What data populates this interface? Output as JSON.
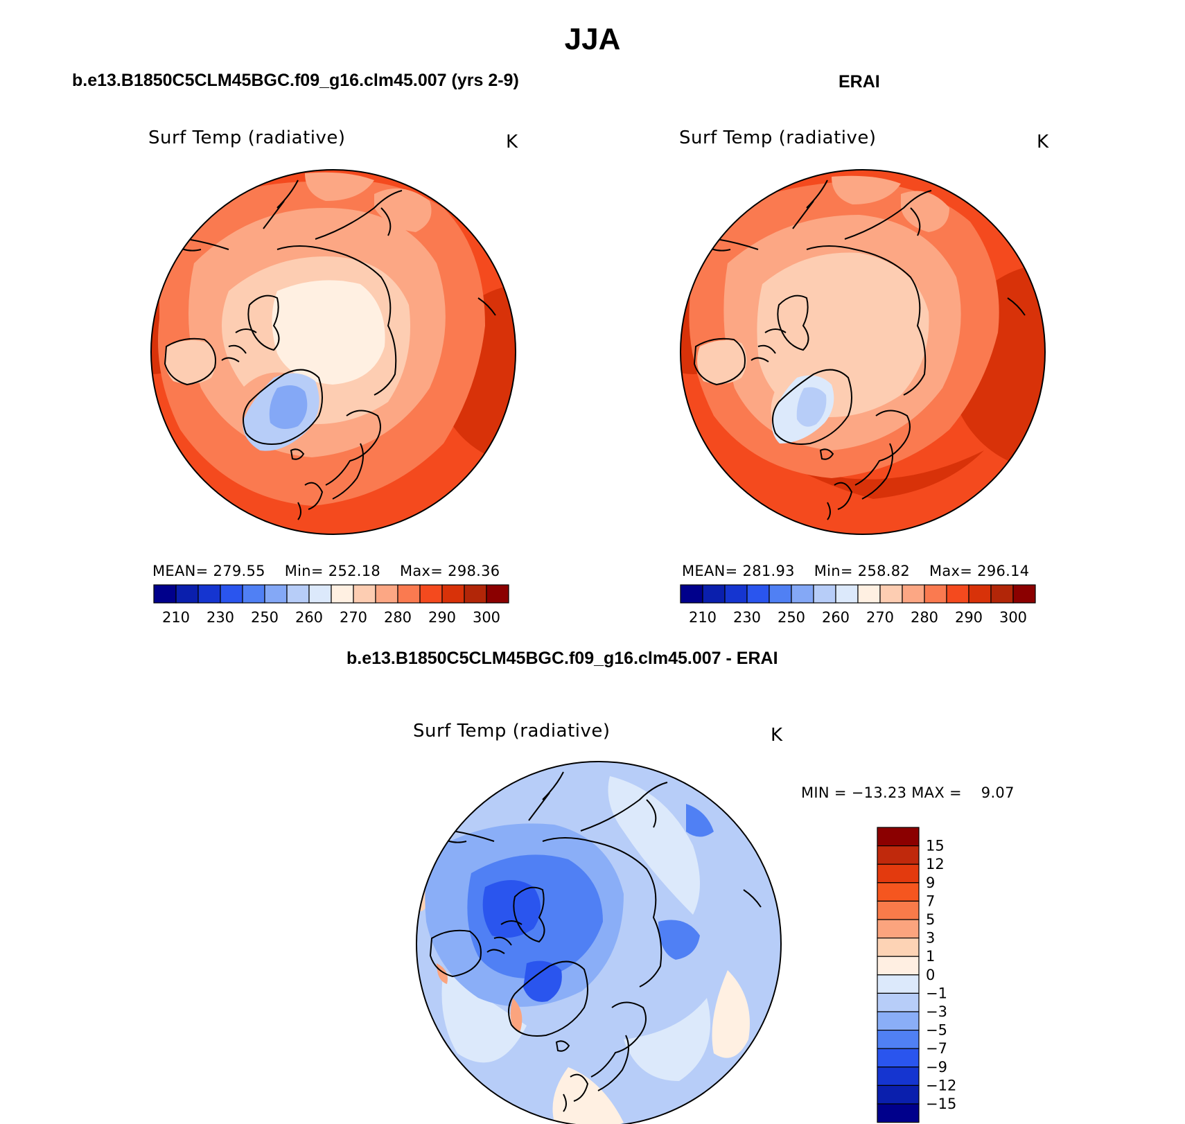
{
  "figure_title": "JJA",
  "panels": [
    {
      "case_title": "b.e13.B1850C5CLM45BGC.f09_g16.clm45.007 (yrs 2-9)",
      "variable": "Surf Temp (radiative)",
      "units": "K",
      "stats": {
        "mean_label": "MEAN=",
        "mean": "279.55",
        "min_label": "Min=",
        "min": "252.18",
        "max_label": "Max=",
        "max": "298.36"
      }
    },
    {
      "case_title": "ERAI",
      "variable": "Surf Temp (radiative)",
      "units": "K",
      "stats": {
        "mean_label": "MEAN=",
        "mean": "281.93",
        "min_label": "Min=",
        "min": "258.82",
        "max_label": "Max=",
        "max": "296.14"
      }
    },
    {
      "case_title": "b.e13.B1850C5CLM45BGC.f09_g16.clm45.007 - ERAI",
      "variable": "Surf Temp (radiative)",
      "units": "K",
      "minmax_text": "MIN = −13.23 MAX =    9.07"
    }
  ],
  "abs_colorbar": {
    "colors": [
      "#00008b",
      "#0a1fad",
      "#1535d0",
      "#2a55ee",
      "#5080f4",
      "#84a8f6",
      "#b7cdf8",
      "#dce9fb",
      "#fff0e2",
      "#fdcdb2",
      "#fca784",
      "#fa7a50",
      "#f44a1e",
      "#d83209",
      "#b22608",
      "#8b0000"
    ],
    "labels": [
      "210",
      "230",
      "250",
      "260",
      "270",
      "280",
      "290",
      "300"
    ]
  },
  "diff_colorbar": {
    "colors": [
      "#8b0000",
      "#c0290c",
      "#e33a0e",
      "#f5561f",
      "#f97b4a",
      "#fba47e",
      "#fdd3b5",
      "#ffefe2",
      "#dce9fb",
      "#b7cdf8",
      "#8aaef7",
      "#5080f4",
      "#2a55ee",
      "#1535d0",
      "#0a1fad",
      "#00008b"
    ],
    "labels": [
      "15",
      "12",
      "9",
      "7",
      "5",
      "3",
      "1",
      "0",
      "−1",
      "−3",
      "−5",
      "−7",
      "−9",
      "−12",
      "−15"
    ]
  }
}
